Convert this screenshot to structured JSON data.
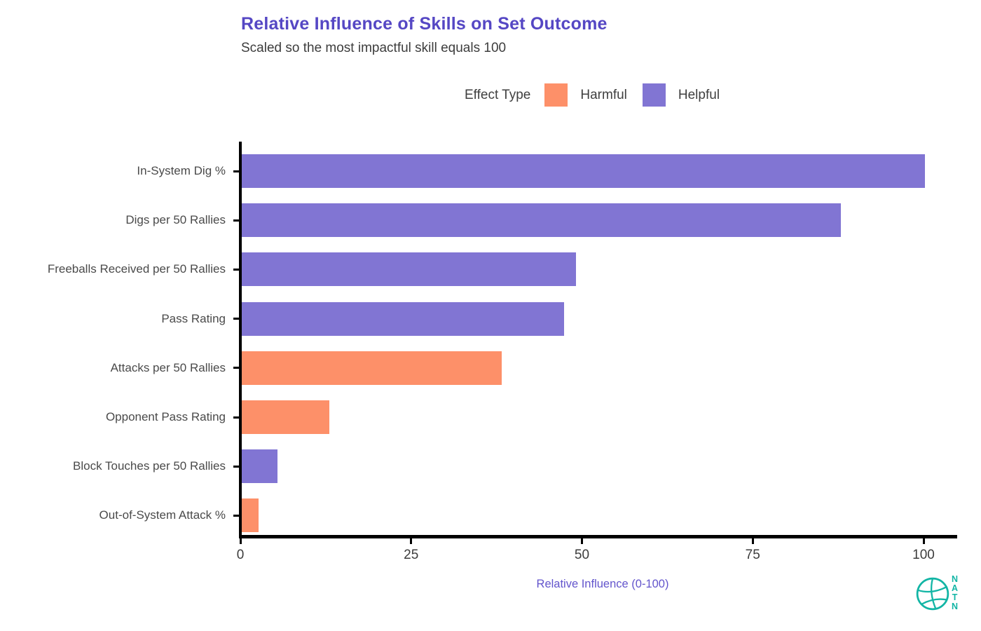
{
  "header": {
    "title": "Relative Influence of Skills on Set Outcome",
    "subtitle": "Scaled so the most impactful skill equals 100",
    "title_color": "#5547c4",
    "subtitle_color": "#3d3d3d"
  },
  "legend": {
    "title": "Effect Type",
    "items": [
      {
        "label": "Harmful",
        "color": "#fd9069"
      },
      {
        "label": "Helpful",
        "color": "#8175d3"
      }
    ]
  },
  "chart_data": {
    "type": "bar",
    "orientation": "horizontal",
    "title": "Relative Influence of Skills on Set Outcome",
    "subtitle": "Scaled so the most impactful skill equals 100",
    "categories": [
      "In-System Dig %",
      "Digs per 50 Rallies",
      "Freeballs Received per 50 Rallies",
      "Pass Rating",
      "Attacks per 50 Rallies",
      "Opponent Pass Rating",
      "Block Touches per 50 Rallies",
      "Out-of-System Attack %"
    ],
    "values": [
      100,
      87.7,
      48.9,
      47.2,
      38.1,
      12.8,
      5.2,
      2.5
    ],
    "effects": [
      "Helpful",
      "Helpful",
      "Helpful",
      "Helpful",
      "Harmful",
      "Harmful",
      "Helpful",
      "Harmful"
    ],
    "colors": {
      "Harmful": "#fd9069",
      "Helpful": "#8175d3"
    },
    "xlabel": "Relative Influence (0-100)",
    "xlabel_color": "#6355cc",
    "xticks": [
      "0",
      "25",
      "50",
      "75",
      "100"
    ],
    "xtick_values": [
      0,
      25,
      50,
      75,
      100
    ],
    "xlim": [
      0,
      105
    ],
    "grid": false,
    "legend_position": "top-right",
    "axis_color": "#000000"
  },
  "footer": {
    "logo_text": "NATN",
    "logo_color": "#12b5a5",
    "logo_icon": "volleyball-icon"
  }
}
